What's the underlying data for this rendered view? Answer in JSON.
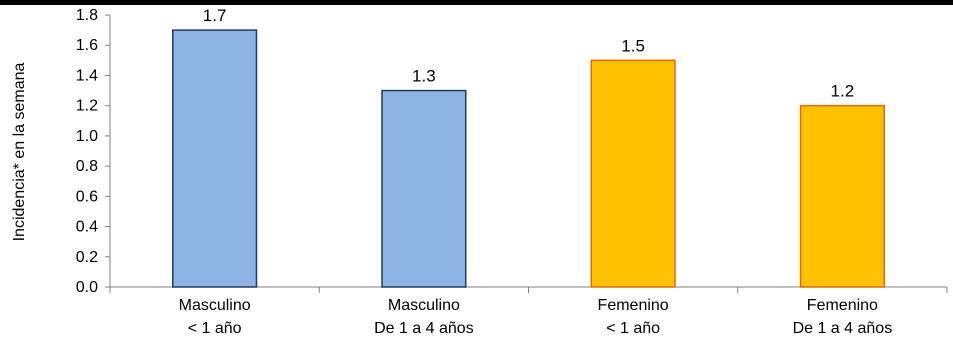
{
  "chart_data": {
    "type": "bar",
    "title": "",
    "xlabel": "",
    "ylabel": "Incidencia* en la semana",
    "ylim": [
      0,
      1.8
    ],
    "ytick_labels": [
      "0.0",
      "0.2",
      "0.4",
      "0.6",
      "0.8",
      "1.0",
      "1.2",
      "1.4",
      "1.6",
      "1.8"
    ],
    "categories": [
      [
        "Masculino",
        "< 1 año"
      ],
      [
        "Masculino",
        "De 1 a 4 años"
      ],
      [
        "Femenino",
        "< 1 año"
      ],
      [
        "Femenino",
        "De 1 a 4 años"
      ]
    ],
    "values": [
      1.7,
      1.3,
      1.5,
      1.2
    ],
    "data_labels": [
      "1.7",
      "1.3",
      "1.5",
      "1.2"
    ],
    "bar_colors": [
      "#8EB4E3",
      "#8EB4E3",
      "#FFC000",
      "#FFC000"
    ],
    "bar_edge_colors": [
      "#1F3864",
      "#1F3864",
      "#E36C09",
      "#E36C09"
    ],
    "grid": false,
    "legend": "none"
  }
}
